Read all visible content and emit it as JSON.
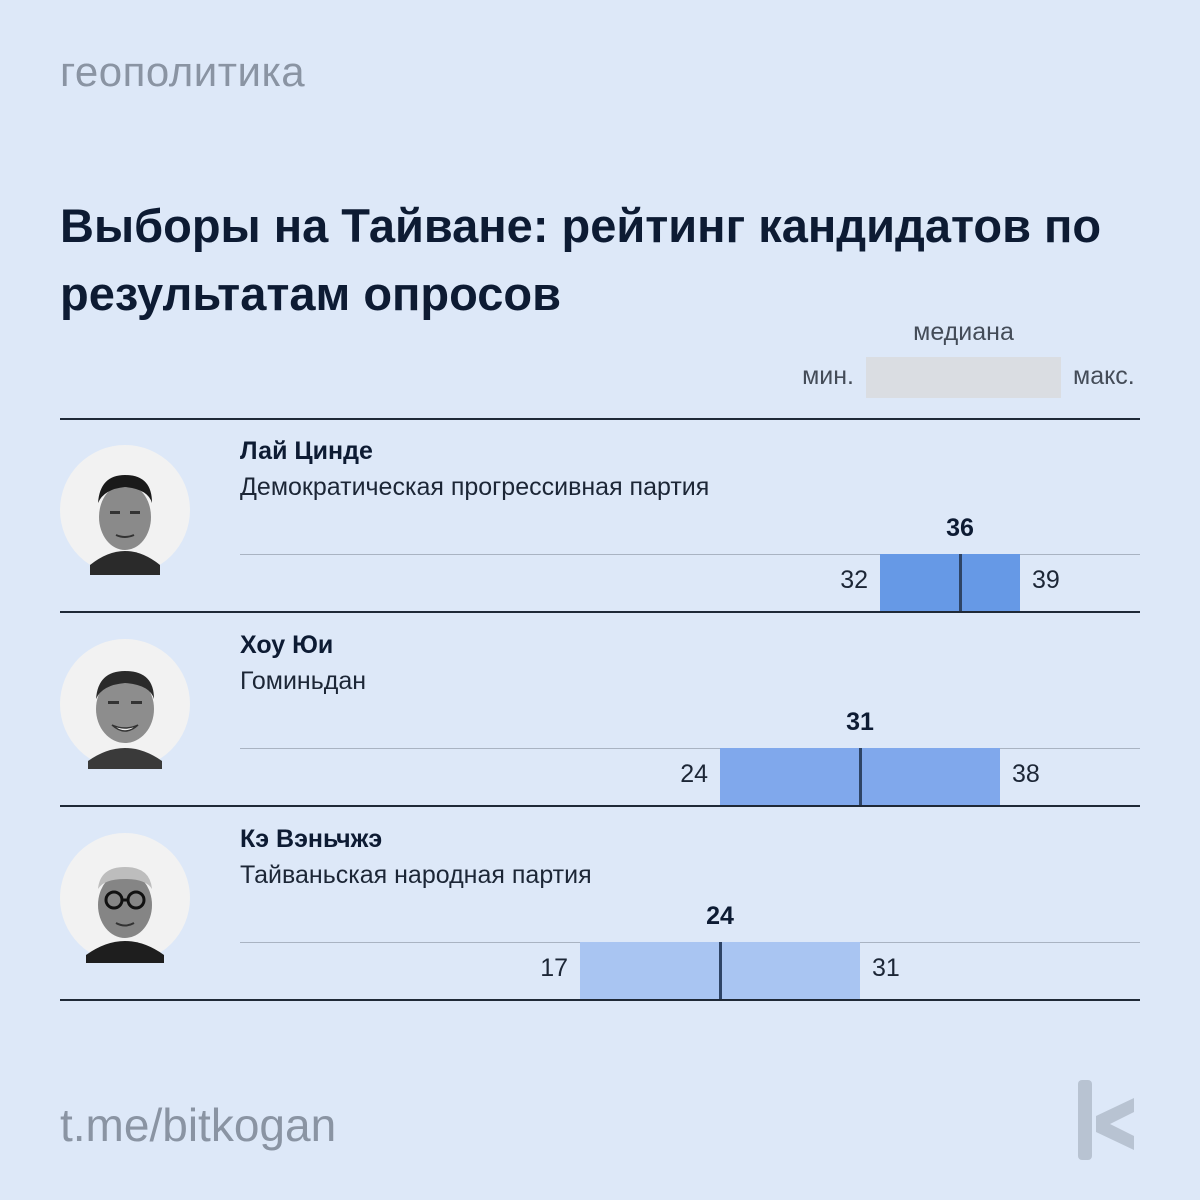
{
  "header": {
    "category": "геополитика",
    "title": "Выборы на Тайване: рейтинг кандидатов по результатам опросов"
  },
  "legend": {
    "median": "медиана",
    "min": "мин.",
    "max": "макс."
  },
  "chart_data": {
    "type": "bar",
    "xlim": [
      0,
      45
    ],
    "categories": [
      "Лай Цинде",
      "Хоу Юи",
      "Кэ Вэньчжэ"
    ],
    "candidates": [
      {
        "name": "Лай Цинде",
        "party": "Демократическая прогрессивная партия",
        "min": 32,
        "median": 36,
        "max": 39,
        "color": "#6699e6",
        "photo_icon": "portrait-lai-icon"
      },
      {
        "name": "Хоу Юи",
        "party": "Гоминьдан",
        "min": 24,
        "median": 31,
        "max": 38,
        "color": "#80a8ec",
        "photo_icon": "portrait-hou-icon"
      },
      {
        "name": "Кэ Вэньчжэ",
        "party": "Тайваньская народная партия",
        "min": 17,
        "median": 24,
        "max": 31,
        "color": "#a9c5f2",
        "photo_icon": "portrait-ko-icon"
      }
    ]
  },
  "footer": {
    "channel": "t.me/bitkogan",
    "logo_icon": "bitkogan-logo-icon"
  }
}
